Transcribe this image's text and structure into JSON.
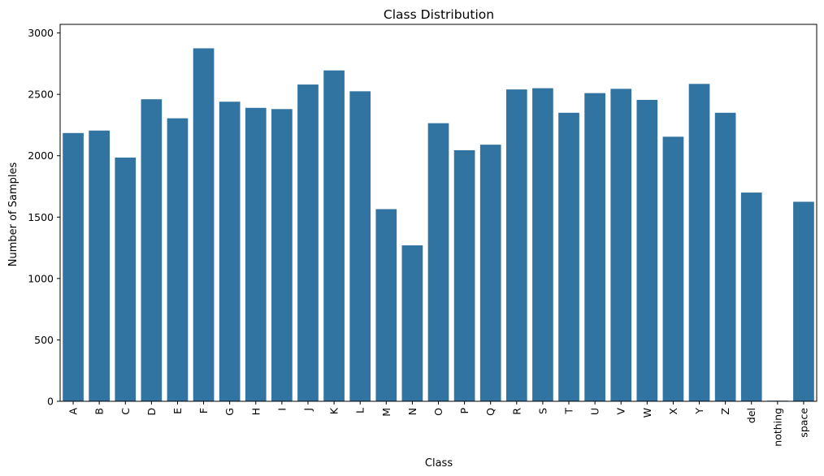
{
  "chart_data": {
    "type": "bar",
    "title": "Class Distribution",
    "xlabel": "Class",
    "ylabel": "Number of Samples",
    "categories": [
      "A",
      "B",
      "C",
      "D",
      "E",
      "F",
      "G",
      "H",
      "I",
      "J",
      "K",
      "L",
      "M",
      "N",
      "O",
      "P",
      "Q",
      "R",
      "S",
      "T",
      "U",
      "V",
      "W",
      "X",
      "Y",
      "Z",
      "del",
      "nothing",
      "space"
    ],
    "values": [
      2185,
      2205,
      1985,
      2460,
      2305,
      2875,
      2440,
      2390,
      2380,
      2580,
      2695,
      2525,
      1565,
      1270,
      2265,
      2045,
      2090,
      2540,
      2550,
      2350,
      2510,
      2545,
      2455,
      2155,
      2585,
      2350,
      1700,
      5,
      1625
    ],
    "ylim": [
      0,
      3070
    ],
    "yticks": [
      0,
      500,
      1000,
      1500,
      2000,
      2500,
      3000
    ],
    "bar_color": "#3274a1",
    "grid": false,
    "legend": "none"
  }
}
